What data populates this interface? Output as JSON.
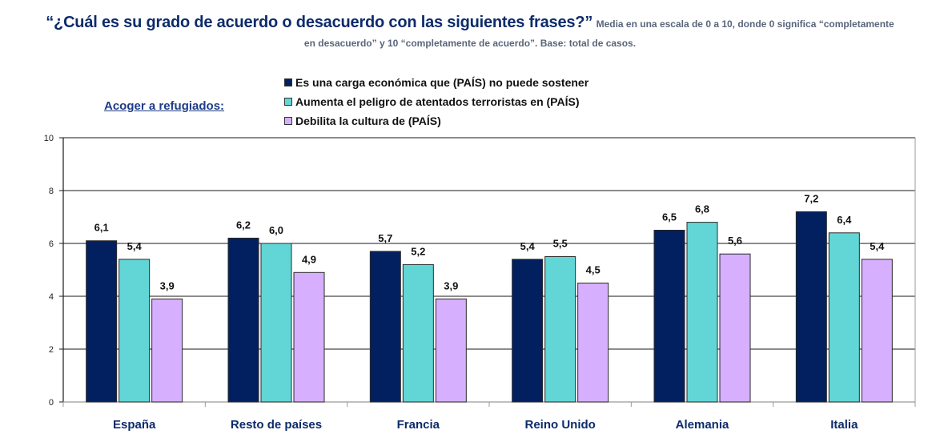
{
  "header": {
    "title": "“¿Cuál es su grado de acuerdo o desacuerdo con las siguientes frases?”",
    "note_line1": "Media en una escala de 0 a 10, donde 0 significa “completamente",
    "note_line2": "en desacuerdo” y 10 “completamente de acuerdo”. Base: total de casos."
  },
  "group_label": "Acoger a refugiados:",
  "chart_data": {
    "type": "bar",
    "title": "¿Cuál es su grado de acuerdo o desacuerdo con las siguientes frases?",
    "subtitle": "Acoger a refugiados:",
    "xlabel": "",
    "ylabel": "",
    "ylim": [
      0,
      10
    ],
    "yticks": [
      0,
      2,
      4,
      6,
      8,
      10
    ],
    "grid": true,
    "legend_position": "top",
    "categories": [
      "España",
      "Resto de países",
      "Francia",
      "Reino Unido",
      "Alemania",
      "Italia"
    ],
    "series": [
      {
        "name": "Es una carga económica que (PAÍS) no puede sostener",
        "color": "#022060",
        "values": [
          6.1,
          6.2,
          5.7,
          5.4,
          6.5,
          7.2
        ],
        "labels": [
          "6,1",
          "6,2",
          "5,7",
          "5,4",
          "6,5",
          "7,2"
        ]
      },
      {
        "name": "Aumenta el peligro de atentados terroristas en (PAÍS)",
        "color": "#62d6d6",
        "values": [
          5.4,
          6.0,
          5.2,
          5.5,
          6.8,
          6.4
        ],
        "labels": [
          "5,4",
          "6,0",
          "5,2",
          "5,5",
          "6,8",
          "6,4"
        ]
      },
      {
        "name": "Debilita la cultura de (PAÍS)",
        "color": "#d6affe",
        "values": [
          3.9,
          4.9,
          3.9,
          4.5,
          5.6,
          5.4
        ],
        "labels": [
          "3,9",
          "4,9",
          "3,9",
          "4,5",
          "5,6",
          "5,4"
        ]
      }
    ]
  }
}
